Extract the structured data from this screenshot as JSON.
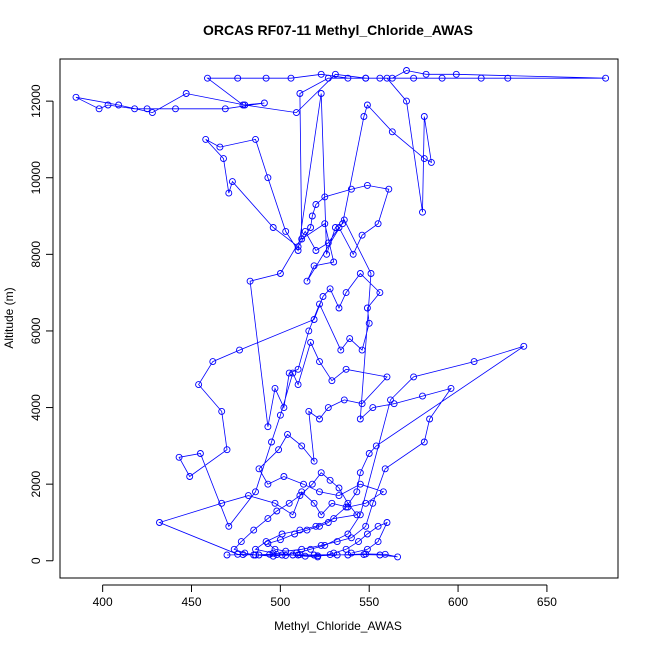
{
  "chart_data": {
    "type": "line",
    "title": "ORCAS RF07-11 Methyl_Chloride_AWAS",
    "xlabel": "Methyl_Chloride_AWAS",
    "ylabel": "Altitude (m)",
    "xlim": [
      376,
      690
    ],
    "ylim": [
      -450,
      13100
    ],
    "x_ticks": [
      400,
      450,
      500,
      550,
      600,
      650
    ],
    "y_ticks": [
      0,
      2000,
      4000,
      6000,
      8000,
      10000,
      12000
    ],
    "grid": false,
    "legend": "none",
    "colors": {
      "series": "#0000ff",
      "axes": "#000000"
    },
    "marker": "open-circle",
    "series": [
      {
        "points": [
          [
            470,
            150
          ],
          [
            479,
            160
          ],
          [
            485,
            150
          ],
          [
            494,
            170
          ],
          [
            503,
            140
          ],
          [
            511,
            160
          ],
          [
            519,
            150
          ],
          [
            528,
            160
          ],
          [
            538,
            150
          ],
          [
            547,
            160
          ],
          [
            556,
            150
          ],
          [
            566,
            100
          ],
          [
            559,
            170
          ],
          [
            548,
            180
          ],
          [
            532,
            150
          ],
          [
            521,
            130
          ],
          [
            510,
            150
          ],
          [
            498,
            160
          ],
          [
            488,
            150
          ],
          [
            476,
            170
          ],
          [
            432,
            1000
          ],
          [
            467,
            1500
          ],
          [
            482,
            1700
          ],
          [
            497,
            1500
          ],
          [
            507,
            1200
          ],
          [
            512,
            1800
          ],
          [
            519,
            1500
          ],
          [
            523,
            1200
          ],
          [
            529,
            1500
          ],
          [
            538,
            1400
          ],
          [
            548,
            1500
          ],
          [
            558,
            1800
          ],
          [
            545,
            2000
          ],
          [
            533,
            1700
          ],
          [
            522,
            1800
          ],
          [
            513,
            2000
          ],
          [
            502,
            2200
          ],
          [
            493,
            2000
          ],
          [
            488,
            2400
          ],
          [
            499,
            2900
          ],
          [
            504,
            3300
          ],
          [
            512,
            3000
          ],
          [
            519,
            2600
          ],
          [
            516,
            3900
          ],
          [
            522,
            3700
          ],
          [
            527,
            4000
          ],
          [
            536,
            4200
          ],
          [
            546,
            4100
          ],
          [
            560,
            4800
          ],
          [
            537,
            5000
          ],
          [
            529,
            4700
          ],
          [
            522,
            5200
          ],
          [
            517,
            5700
          ],
          [
            510,
            4600
          ],
          [
            507,
            4900
          ],
          [
            500,
            3800
          ],
          [
            495,
            3100
          ],
          [
            486,
            1800
          ],
          [
            471,
            900
          ],
          [
            455,
            2800
          ],
          [
            443,
            2700
          ],
          [
            449,
            2200
          ],
          [
            470,
            2900
          ],
          [
            467,
            3900
          ],
          [
            454,
            4600
          ],
          [
            462,
            5200
          ],
          [
            477,
            5500
          ],
          [
            519,
            6300
          ],
          [
            524,
            6900
          ],
          [
            528,
            7100
          ],
          [
            533,
            6600
          ],
          [
            537,
            7000
          ],
          [
            545,
            7500
          ],
          [
            556,
            7000
          ],
          [
            549,
            6600
          ],
          [
            550,
            6200
          ],
          [
            546,
            5500
          ],
          [
            539,
            5800
          ],
          [
            534,
            5500
          ],
          [
            522,
            6700
          ],
          [
            516,
            6000
          ],
          [
            510,
            5000
          ],
          [
            505,
            4900
          ],
          [
            502,
            4000
          ],
          [
            497,
            4500
          ],
          [
            493,
            3500
          ],
          [
            483,
            7300
          ],
          [
            500,
            7500
          ],
          [
            514,
            8600
          ],
          [
            520,
            8100
          ],
          [
            527,
            8300
          ],
          [
            533,
            8700
          ],
          [
            541,
            8000
          ],
          [
            546,
            8500
          ],
          [
            555,
            8800
          ],
          [
            561,
            9700
          ],
          [
            549,
            9800
          ],
          [
            540,
            9700
          ],
          [
            525,
            9500
          ],
          [
            520,
            9300
          ],
          [
            518,
            9000
          ],
          [
            517,
            8700
          ],
          [
            510,
            8200
          ],
          [
            496,
            8700
          ],
          [
            473,
            9900
          ],
          [
            471,
            9600
          ],
          [
            468,
            10500
          ],
          [
            458,
            11000
          ],
          [
            466,
            10800
          ],
          [
            486,
            11000
          ],
          [
            493,
            10000
          ],
          [
            503,
            8600
          ],
          [
            510,
            8100
          ],
          [
            523,
            12200
          ],
          [
            526,
            8000
          ],
          [
            531,
            8700
          ],
          [
            535,
            8800
          ],
          [
            547,
            11600
          ],
          [
            549,
            11900
          ],
          [
            563,
            11200
          ],
          [
            581,
            10500
          ],
          [
            585,
            10400
          ],
          [
            581,
            11600
          ],
          [
            580,
            9100
          ],
          [
            571,
            12000
          ],
          [
            560,
            12600
          ],
          [
            538,
            12600
          ],
          [
            523,
            12700
          ],
          [
            506,
            12600
          ],
          [
            492,
            12600
          ],
          [
            476,
            12600
          ],
          [
            459,
            12600
          ],
          [
            479,
            11900
          ],
          [
            491,
            11950
          ],
          [
            469,
            11800
          ],
          [
            441,
            11800
          ],
          [
            425,
            11800
          ],
          [
            418,
            11800
          ],
          [
            403,
            11900
          ],
          [
            398,
            11800
          ],
          [
            385,
            12100
          ],
          [
            409,
            11900
          ],
          [
            428,
            11700
          ],
          [
            447,
            12200
          ],
          [
            480,
            11900
          ],
          [
            509,
            11700
          ],
          [
            531,
            12700
          ],
          [
            548,
            12600
          ],
          [
            556,
            12600
          ],
          [
            575,
            12600
          ],
          [
            591,
            12600
          ],
          [
            613,
            12600
          ],
          [
            628,
            12600
          ],
          [
            683,
            12600
          ],
          [
            599,
            12700
          ],
          [
            582,
            12700
          ],
          [
            571,
            12800
          ],
          [
            563,
            12600
          ],
          [
            548,
            12600
          ],
          [
            527,
            12600
          ],
          [
            511,
            12200
          ],
          [
            512,
            8400
          ],
          [
            525,
            8800
          ],
          [
            530,
            7800
          ],
          [
            519,
            7700
          ],
          [
            515,
            7300
          ],
          [
            536,
            8900
          ],
          [
            551,
            7500
          ],
          [
            545,
            3700
          ],
          [
            552,
            4000
          ],
          [
            564,
            4100
          ],
          [
            580,
            4300
          ],
          [
            596,
            4500
          ],
          [
            584,
            3700
          ],
          [
            581,
            3100
          ],
          [
            559,
            2400
          ],
          [
            552,
            1500
          ],
          [
            548,
            900
          ],
          [
            540,
            600
          ],
          [
            532,
            500
          ],
          [
            523,
            400
          ],
          [
            512,
            300
          ],
          [
            503,
            250
          ],
          [
            497,
            300
          ],
          [
            493,
            450
          ],
          [
            500,
            550
          ],
          [
            508,
            700
          ],
          [
            515,
            800
          ],
          [
            522,
            900
          ],
          [
            527,
            1000
          ],
          [
            537,
            1400
          ],
          [
            543,
            1800
          ],
          [
            545,
            2300
          ],
          [
            550,
            2800
          ],
          [
            554,
            3000
          ],
          [
            637,
            5600
          ],
          [
            609,
            5200
          ],
          [
            575,
            4800
          ],
          [
            562,
            4200
          ],
          [
            545,
            1200
          ],
          [
            538,
            700
          ],
          [
            525,
            400
          ],
          [
            517,
            300
          ],
          [
            509,
            200
          ],
          [
            501,
            150
          ],
          [
            496,
            120
          ],
          [
            486,
            150
          ],
          [
            480,
            200
          ],
          [
            474,
            300
          ],
          [
            478,
            500
          ],
          [
            485,
            800
          ],
          [
            493,
            1100
          ],
          [
            498,
            1300
          ],
          [
            505,
            1500
          ],
          [
            511,
            1700
          ],
          [
            518,
            2000
          ],
          [
            523,
            2300
          ],
          [
            528,
            2100
          ],
          [
            533,
            1900
          ],
          [
            538,
            1500
          ],
          [
            543,
            1200
          ],
          [
            530,
            1100
          ],
          [
            520,
            900
          ],
          [
            511,
            800
          ],
          [
            501,
            700
          ],
          [
            492,
            500
          ],
          [
            486,
            300
          ],
          [
            496,
            200
          ],
          [
            507,
            150
          ],
          [
            514,
            120
          ],
          [
            521,
            100
          ],
          [
            530,
            200
          ],
          [
            537,
            300
          ],
          [
            544,
            500
          ],
          [
            549,
            700
          ],
          [
            555,
            900
          ],
          [
            560,
            1000
          ],
          [
            555,
            500
          ],
          [
            549,
            300
          ],
          [
            540,
            200
          ]
        ]
      }
    ]
  }
}
